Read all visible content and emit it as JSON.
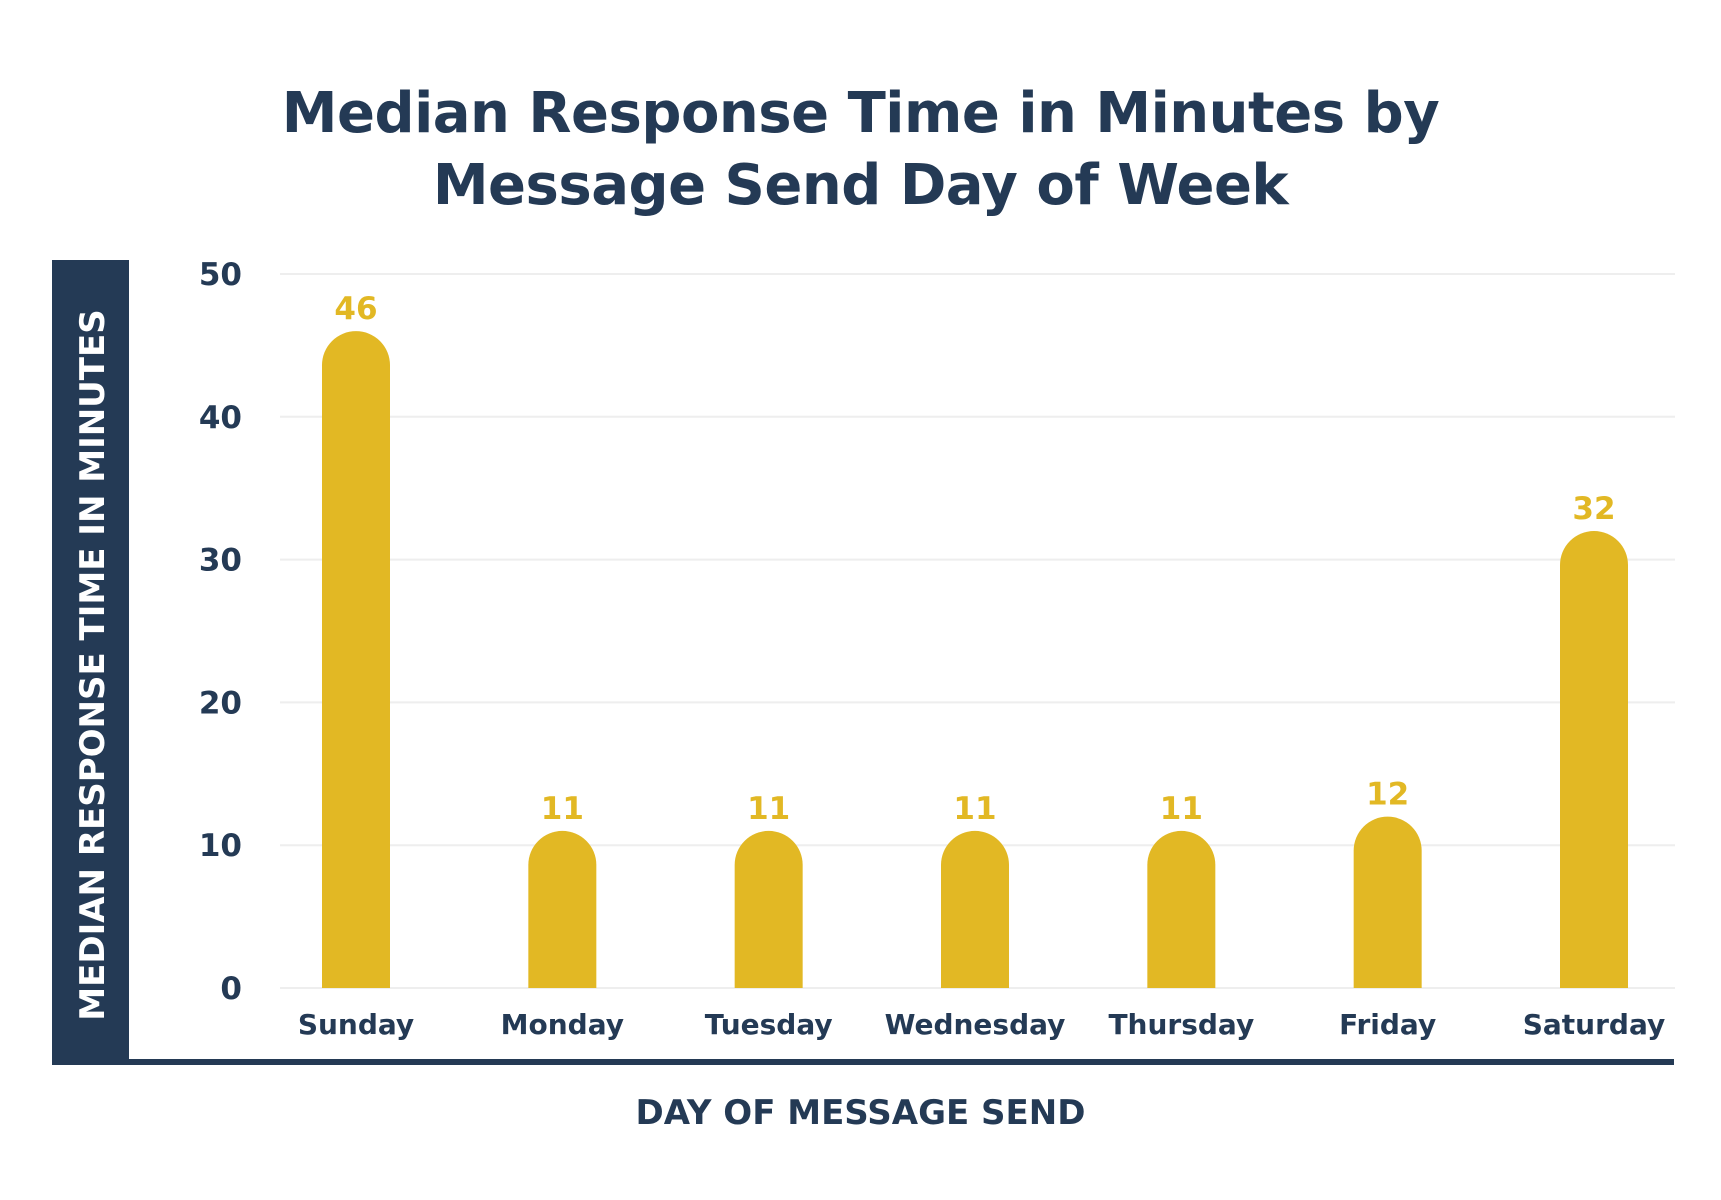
{
  "chart_data": {
    "type": "bar",
    "title_lines": [
      "Median Response Time in Minutes by",
      "Message Send Day of Week"
    ],
    "xlabel": "DAY OF MESSAGE SEND",
    "ylabel": "MEDIAN RESPONSE TIME IN MINUTES",
    "categories": [
      "Sunday",
      "Monday",
      "Tuesday",
      "Wednesday",
      "Thursday",
      "Friday",
      "Saturday"
    ],
    "values": [
      46,
      11,
      11,
      11,
      11,
      12,
      32
    ],
    "data_labels": [
      "46",
      "11",
      "11",
      "11",
      "11",
      "12",
      "32"
    ],
    "ylim": [
      0,
      50
    ],
    "yticks": [
      0,
      10,
      20,
      30,
      40,
      50
    ],
    "grid": true,
    "legend": "none",
    "colors": {
      "bar": "#e2b824",
      "data_label": "#e2b824",
      "text": "#243a55",
      "axis_panel": "#243a55",
      "grid": "#eeeeee"
    }
  }
}
